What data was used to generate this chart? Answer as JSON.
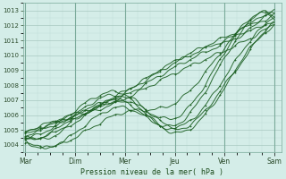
{
  "xlabel": "Pression niveau de la mer( hPa )",
  "bg_color": "#d4ede8",
  "grid_color_major": "#a8c8c0",
  "grid_color_minor": "#c0dcd8",
  "line_color": "#1a5e20",
  "ylim": [
    1003.5,
    1013.5
  ],
  "yticks": [
    1004,
    1005,
    1006,
    1007,
    1008,
    1009,
    1010,
    1011,
    1012,
    1013
  ],
  "xtick_labels": [
    "Mar",
    "Dim",
    "Mer",
    "Jeu",
    "Ven",
    "Sam"
  ],
  "xtick_positions": [
    0,
    1,
    2,
    3,
    4,
    5
  ],
  "xlim": [
    -0.05,
    5.15
  ]
}
